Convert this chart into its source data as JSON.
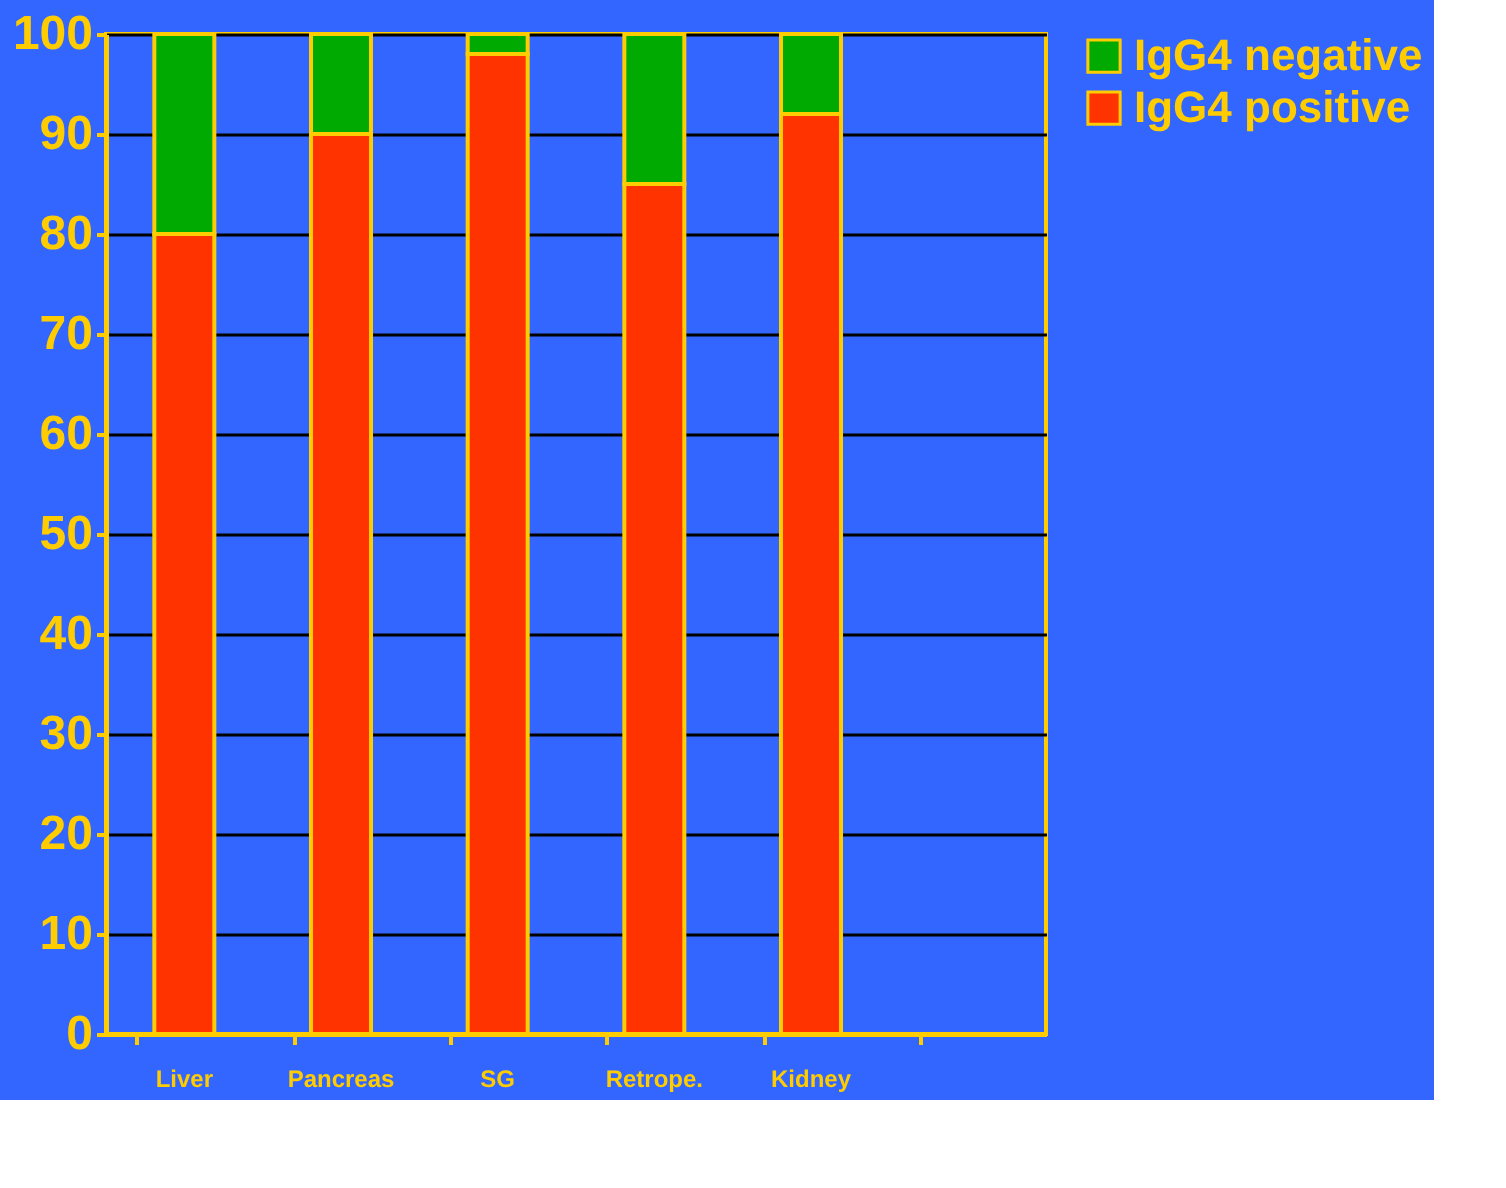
{
  "chart_data": {
    "type": "bar",
    "stacked": true,
    "categories": [
      "Liver",
      "Pancreas",
      "SG",
      "Retrope.",
      "Kidney",
      null
    ],
    "series": [
      {
        "name": "IgG4 positive",
        "color": "#ff3300",
        "values": [
          80,
          90,
          98,
          85,
          92,
          null
        ]
      },
      {
        "name": "IgG4 negative",
        "color": "#00aa00",
        "values": [
          20,
          10,
          2,
          15,
          8,
          null
        ]
      }
    ],
    "ylim": [
      0,
      100
    ],
    "yticks": [
      0,
      10,
      20,
      30,
      40,
      50,
      60,
      70,
      80,
      90,
      100
    ],
    "grid": "y",
    "legend": "right"
  }
}
